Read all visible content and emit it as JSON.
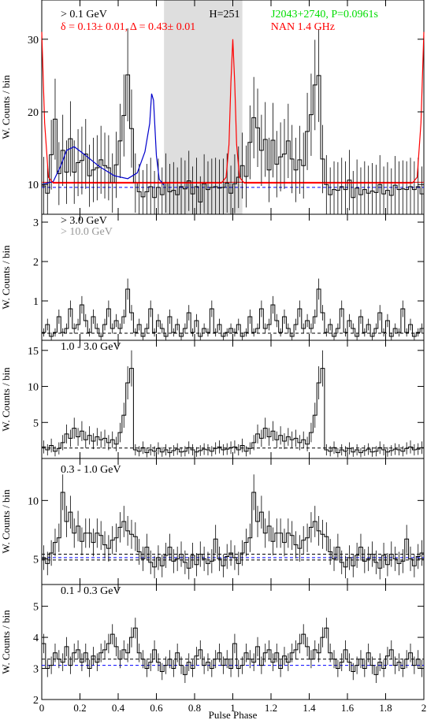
{
  "chart_data": [
    {
      "type": "line",
      "subtype": "histogram",
      "panel": "> 0.1 GeV",
      "labels": [
        {
          "text": "> 0.1 GeV",
          "color": "#000000"
        },
        {
          "text": "H=251",
          "color": "#000000"
        },
        {
          "text": "J2043+2740, P=0.0961s",
          "color": "#00dd00"
        },
        {
          "text": "δ = 0.13± 0.01, Δ = 0.43± 0.01",
          "color": "#ff0000"
        },
        {
          "text": "NAN 1.4 GHz",
          "color": "#ff0000"
        }
      ],
      "ylabel": "W. Counts / bin",
      "xlim": [
        0,
        2
      ],
      "ylim": [
        5.9,
        35.4
      ],
      "yticks": [
        10,
        20,
        30
      ],
      "shaded_region": [
        0.64,
        1.05
      ],
      "baselines": [
        {
          "value": 10.3,
          "color": "#ff0000"
        },
        {
          "value": 9.6,
          "color": "#0000ff"
        }
      ],
      "series_hist": [
        9.8,
        8.8,
        14.1,
        19.0,
        11.5,
        14.7,
        11.7,
        16.3,
        11.7,
        13.0,
        13.3,
        14.2,
        11.2,
        12.0,
        12.3,
        13.4,
        12.6,
        12.3,
        10.2,
        12.7,
        16.0,
        19.5,
        25.1,
        17.7,
        10.2,
        9.0,
        8.3,
        9.0,
        9.7,
        8.2,
        9.6,
        8.6,
        10.2,
        9.0,
        9.2,
        8.6,
        9.7,
        9.4,
        10.5,
        8.7,
        9.7,
        7.6,
        10.1,
        9.3,
        9.6,
        9.7,
        9.5,
        9.6,
        10.2,
        8.8,
        10.1,
        11.0,
        12.6,
        11.1,
        15.8,
        19.2,
        17.8,
        14.7,
        16.2,
        12.0,
        16.1,
        12.8,
        13.8,
        14.2,
        16.0,
        13.5,
        12.0,
        13.4,
        12.6,
        17.3,
        19.6,
        23.7,
        25.0,
        13.5,
        10.0,
        8.6,
        9.3,
        9.2,
        9.7,
        9.3,
        10.6,
        8.2,
        9.5,
        8.6,
        9.3,
        8.8,
        9.1,
        8.9,
        10.0,
        8.7,
        9.2,
        8.5,
        9.9,
        9.3,
        9.4,
        9.3,
        9.7,
        9.3,
        9.7,
        8.7
      ],
      "fit_blue": [
        [
          0,
          10.0
        ],
        [
          0.06,
          10.4
        ],
        [
          0.1,
          12.6
        ],
        [
          0.13,
          14.7
        ],
        [
          0.17,
          15.2
        ],
        [
          0.22,
          14.2
        ],
        [
          0.3,
          12.5
        ],
        [
          0.38,
          11.2
        ],
        [
          0.45,
          10.8
        ],
        [
          0.5,
          11.6
        ],
        [
          0.54,
          14.5
        ],
        [
          0.565,
          18.4
        ],
        [
          0.575,
          22.5
        ],
        [
          0.585,
          21.6
        ],
        [
          0.6,
          14.0
        ],
        [
          0.615,
          10.7
        ],
        [
          0.64,
          9.9
        ]
      ],
      "radio_red": [
        [
          0,
          31.0
        ],
        [
          0.015,
          18.5
        ],
        [
          0.035,
          11.0
        ],
        [
          0.06,
          10.2
        ],
        [
          0.94,
          10.2
        ],
        [
          0.965,
          11.0
        ],
        [
          0.98,
          15.5
        ],
        [
          0.99,
          24.0
        ],
        [
          1.0,
          30.0
        ],
        [
          1.01,
          24.0
        ],
        [
          1.02,
          15.5
        ],
        [
          1.035,
          11.0
        ],
        [
          1.06,
          10.2
        ],
        [
          1.94,
          10.2
        ],
        [
          1.965,
          11.0
        ],
        [
          1.985,
          18.5
        ],
        [
          2.0,
          31.0
        ]
      ]
    },
    {
      "type": "line",
      "subtype": "histogram",
      "panel": "> 3.0 GeV",
      "labels": [
        {
          "text": "> 3.0 GeV",
          "color": "#000000"
        },
        {
          "text": "> 10.0 GeV",
          "color": "#999999"
        }
      ],
      "ylabel": "W. Counts / bin",
      "xlim": [
        0,
        2
      ],
      "ylim": [
        0,
        3.2
      ],
      "yticks": [
        1,
        2,
        3
      ],
      "baselines": [
        {
          "value": 0.18,
          "color": "#000000"
        }
      ],
      "series_hist": [
        0.2,
        0.4,
        0.1,
        0.2,
        0.6,
        0.2,
        0.3,
        0.8,
        0.3,
        0.4,
        0.9,
        0.5,
        0.2,
        0.6,
        0.3,
        0.1,
        0.4,
        0.8,
        0.3,
        0.5,
        0.3,
        0.6,
        1.3,
        0.7,
        0.2,
        0.4,
        0.1,
        0.3,
        0.8,
        0.2,
        0.5,
        0.3,
        0.1,
        0.6,
        0.2,
        0.4,
        0.1,
        0.3,
        0.7,
        0.2,
        0.5,
        0.1,
        0.3,
        0.2,
        0.8,
        0.2,
        0.4,
        0.1,
        0.2,
        0.3,
        0.2,
        0.4,
        0.1,
        0.2,
        0.6,
        0.2,
        0.3,
        0.8,
        0.3,
        0.4,
        0.9,
        0.5,
        0.2,
        0.6,
        0.3,
        0.1,
        0.4,
        0.8,
        0.3,
        0.5,
        0.3,
        0.6,
        1.3,
        0.7,
        0.2,
        0.4,
        0.1,
        0.3,
        0.8,
        0.2,
        0.5,
        0.3,
        0.1,
        0.6,
        0.2,
        0.4,
        0.1,
        0.3,
        0.7,
        0.2,
        0.5,
        0.1,
        0.3,
        0.2,
        0.8,
        0.2,
        0.4,
        0.1,
        0.2,
        0.3
      ]
    },
    {
      "type": "line",
      "subtype": "histogram",
      "panel": "1.0 - 3.0 GeV",
      "labels": [
        {
          "text": "1.0 - 3.0 GeV",
          "color": "#000000"
        }
      ],
      "ylabel": "W. Counts / bin",
      "xlim": [
        0,
        2
      ],
      "ylim": [
        0,
        16.4
      ],
      "yticks": [
        5,
        10,
        15
      ],
      "baselines": [
        {
          "value": 1.45,
          "color": "#000000"
        }
      ],
      "series_hist": [
        1.6,
        1.2,
        1.8,
        1.0,
        1.4,
        2.2,
        3.4,
        2.8,
        4.2,
        3.0,
        3.8,
        2.6,
        3.2,
        2.4,
        3.0,
        2.6,
        2.8,
        2.2,
        2.6,
        2.0,
        3.6,
        6.0,
        10.5,
        12.5,
        1.2,
        1.0,
        1.5,
        0.8,
        1.2,
        1.0,
        1.4,
        0.9,
        1.2,
        0.8,
        1.1,
        1.3,
        0.9,
        1.0,
        1.5,
        1.2,
        0.9,
        1.1,
        1.3,
        1.2,
        1.0,
        1.4,
        1.6,
        1.2,
        1.3,
        1.5,
        1.6,
        1.2,
        1.8,
        1.0,
        1.4,
        2.2,
        3.4,
        2.8,
        4.2,
        3.0,
        3.8,
        2.6,
        3.2,
        2.4,
        3.0,
        2.6,
        2.8,
        2.2,
        2.6,
        2.0,
        3.6,
        6.0,
        10.5,
        12.5,
        1.2,
        1.0,
        1.5,
        0.8,
        1.2,
        1.0,
        1.4,
        0.9,
        1.2,
        0.8,
        1.1,
        1.3,
        0.9,
        1.0,
        1.5,
        1.2,
        0.9,
        1.1,
        1.3,
        1.2,
        1.0,
        1.4,
        1.6,
        1.2,
        1.3,
        1.5
      ]
    },
    {
      "type": "line",
      "subtype": "histogram",
      "panel": "0.3 - 1.0 GeV",
      "labels": [
        {
          "text": "0.3 - 1.0 GeV",
          "color": "#000000"
        }
      ],
      "ylabel": "W. Counts / bin",
      "xlim": [
        0,
        2
      ],
      "ylim": [
        2.8,
        13.6
      ],
      "yticks": [
        5,
        10
      ],
      "baselines": [
        {
          "value": 5.4,
          "color": "#000000"
        },
        {
          "value": 5.1,
          "color": "#0000ff"
        },
        {
          "value": 4.9,
          "color": "#000000"
        }
      ],
      "series_hist": [
        5.1,
        4.6,
        5.5,
        6.4,
        6.8,
        10.7,
        8.2,
        9.0,
        7.2,
        7.8,
        6.5,
        7.2,
        7.2,
        6.4,
        7.2,
        7.0,
        6.2,
        5.9,
        6.6,
        6.8,
        7.7,
        8.2,
        7.4,
        7.1,
        6.9,
        5.6,
        5.0,
        6.0,
        4.7,
        4.3,
        5.1,
        4.4,
        5.3,
        6.0,
        4.8,
        5.0,
        5.4,
        4.7,
        4.2,
        5.3,
        4.5,
        5.4,
        5.0,
        4.6,
        4.8,
        6.7,
        5.0,
        4.4,
        5.2,
        5.5,
        5.1,
        4.6,
        5.5,
        6.4,
        6.8,
        10.7,
        8.2,
        9.0,
        7.2,
        7.8,
        6.5,
        7.2,
        7.2,
        6.4,
        7.2,
        7.0,
        6.2,
        5.9,
        6.6,
        6.8,
        7.7,
        8.2,
        7.4,
        7.1,
        6.9,
        5.6,
        5.0,
        6.0,
        4.7,
        4.3,
        5.1,
        4.4,
        5.3,
        6.0,
        4.8,
        5.0,
        5.4,
        4.7,
        4.2,
        5.3,
        4.5,
        5.4,
        5.0,
        4.6,
        4.8,
        6.7,
        5.0,
        4.4,
        5.2,
        5.5
      ]
    },
    {
      "type": "line",
      "subtype": "histogram",
      "panel": "0.1 - 0.3 GeV",
      "labels": [
        {
          "text": "0.1 - 0.3 GeV",
          "color": "#000000"
        }
      ],
      "xlabel": "Pulse Phase",
      "ylabel": "W. Counts / bin",
      "xlim": [
        0,
        2
      ],
      "ylim": [
        2,
        5.7
      ],
      "yticks": [
        2,
        3,
        4,
        5
      ],
      "xticks": [
        0,
        0.2,
        0.4,
        0.6,
        0.8,
        1,
        1.2,
        1.4,
        1.6,
        1.8,
        2
      ],
      "xticklabels": [
        "0",
        "0.2",
        "0.4",
        "0.6",
        "0.8",
        "1",
        "1.2",
        "1.4",
        "1.6",
        "1.8",
        "2"
      ],
      "baselines": [
        {
          "value": 3.3,
          "color": "#000000"
        },
        {
          "value": 3.1,
          "color": "#0000ff"
        }
      ],
      "series_hist": [
        3.8,
        3.0,
        3.1,
        3.5,
        3.3,
        3.2,
        3.7,
        3.1,
        3.5,
        3.6,
        3.2,
        3.5,
        3.0,
        3.4,
        3.2,
        3.5,
        3.6,
        3.8,
        4.1,
        3.7,
        3.3,
        3.6,
        3.5,
        4.0,
        4.3,
        3.5,
        3.3,
        3.0,
        3.2,
        3.6,
        3.2,
        2.9,
        3.1,
        3.3,
        3.0,
        3.5,
        3.1,
        2.8,
        3.2,
        3.0,
        3.4,
        3.6,
        3.1,
        3.2,
        3.0,
        3.3,
        3.5,
        3.1,
        3.3,
        3.0,
        3.8,
        3.0,
        3.1,
        3.5,
        3.3,
        3.2,
        3.7,
        3.1,
        3.5,
        3.6,
        3.2,
        3.5,
        3.0,
        3.4,
        3.2,
        3.5,
        3.6,
        3.8,
        4.1,
        3.7,
        3.3,
        3.6,
        3.5,
        4.0,
        4.3,
        3.5,
        3.3,
        3.0,
        3.2,
        3.6,
        3.2,
        2.9,
        3.1,
        3.3,
        3.0,
        3.5,
        3.1,
        2.8,
        3.2,
        3.0,
        3.4,
        3.6,
        3.1,
        3.2,
        3.0,
        3.3,
        3.5,
        3.1,
        3.3,
        3.0
      ]
    }
  ]
}
